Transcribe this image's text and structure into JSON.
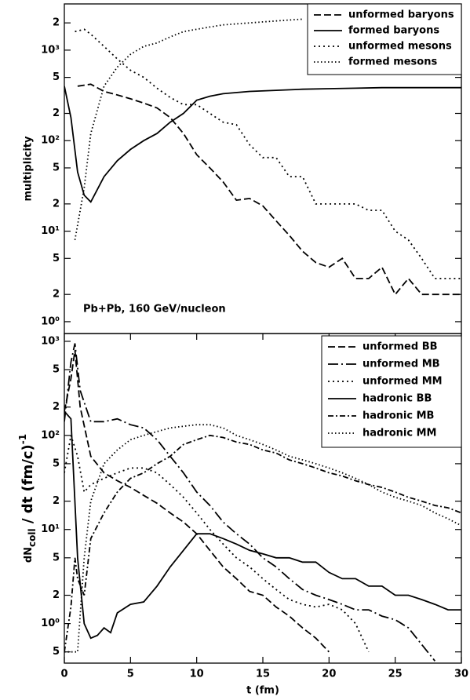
{
  "chart_data": [
    {
      "type": "line",
      "ylabel": "multiplicity",
      "annotation": "Pb+Pb, 160 GeV/nucleon",
      "xlim": [
        0,
        30
      ],
      "ylim": [
        0.74,
        3240
      ],
      "log_y": true,
      "legend": "upper right",
      "yticks": [
        {
          "value": 1,
          "label": "10⁰"
        },
        2,
        5,
        {
          "value": 10,
          "label": "10¹"
        },
        {
          "value": 20,
          "label": "2"
        },
        {
          "value": 50,
          "label": "5"
        },
        {
          "value": 100,
          "label": "10²"
        },
        {
          "value": 200,
          "label": "2"
        },
        {
          "value": 500,
          "label": "5"
        },
        {
          "value": 1000,
          "label": "10³"
        },
        {
          "value": 2000,
          "label": "2"
        }
      ],
      "series": [
        {
          "name": "unformed baryons",
          "color": "#000000",
          "dash": "dashed",
          "x": [
            1,
            2,
            3,
            4,
            5,
            6,
            7,
            8,
            9,
            10,
            11,
            12,
            13,
            14,
            15,
            16,
            17,
            18,
            19,
            20,
            21,
            22,
            23,
            24,
            25,
            26,
            27,
            28,
            29,
            30
          ],
          "values": [
            400,
            420,
            350,
            320,
            290,
            260,
            230,
            180,
            120,
            70,
            50,
            35,
            22,
            23,
            19,
            13,
            9,
            6,
            4.5,
            4,
            5,
            3,
            3,
            4,
            2,
            3,
            2,
            2,
            2,
            2
          ]
        },
        {
          "name": "formed baryons",
          "color": "#000000",
          "dash": "solid",
          "x": [
            0,
            0.5,
            1,
            1.5,
            2,
            3,
            4,
            5,
            6,
            7,
            8,
            9,
            10,
            11,
            12,
            14,
            16,
            18,
            20,
            22,
            24,
            26,
            28,
            30
          ],
          "values": [
            400,
            180,
            45,
            25,
            21,
            40,
            60,
            80,
            100,
            120,
            160,
            200,
            280,
            310,
            330,
            350,
            360,
            370,
            375,
            380,
            385,
            385,
            385,
            385
          ]
        },
        {
          "name": "unformed mesons",
          "color": "#000000",
          "dash": "dotted",
          "x": [
            0.8,
            1.5,
            2,
            3,
            4,
            5,
            6,
            7,
            8,
            9,
            10,
            11,
            12,
            13,
            14,
            15,
            16,
            17,
            18,
            19,
            20,
            21,
            22,
            23,
            24,
            25,
            26,
            27,
            28,
            29,
            30
          ],
          "values": [
            1600,
            1700,
            1500,
            1100,
            800,
            600,
            500,
            380,
            300,
            250,
            250,
            200,
            160,
            150,
            90,
            65,
            65,
            40,
            40,
            20,
            20,
            20,
            20,
            17,
            17,
            10,
            8,
            5,
            3,
            3,
            3
          ]
        },
        {
          "name": "formed mesons",
          "color": "#000000",
          "dash": "dotted2",
          "x": [
            0.8,
            1.5,
            2,
            3,
            4,
            5,
            6,
            7,
            8,
            9,
            10,
            11,
            12,
            13,
            14,
            15,
            16,
            17,
            18
          ],
          "values": [
            8,
            30,
            120,
            400,
            650,
            900,
            1100,
            1200,
            1400,
            1600,
            1700,
            1800,
            1900,
            1950,
            2000,
            2050,
            2100,
            2150,
            2200
          ]
        }
      ]
    },
    {
      "type": "line",
      "xlabel": "t (fm)",
      "ylabel": [
        "dN",
        "coll",
        " / dt (fm/c)",
        "-1"
      ],
      "xlim": [
        0,
        30
      ],
      "xticks": [
        0,
        5,
        10,
        15,
        20,
        25,
        30
      ],
      "ylim": [
        0.38,
        1210
      ],
      "log_y": true,
      "legend": "upper right",
      "yticks": [
        {
          "value": 0.5,
          "label": "5"
        },
        {
          "value": 1,
          "label": "10⁰"
        },
        2,
        5,
        {
          "value": 10,
          "label": "10¹"
        },
        {
          "value": 20,
          "label": "2"
        },
        {
          "value": 50,
          "label": "5"
        },
        {
          "value": 100,
          "label": "10²"
        },
        {
          "value": 200,
          "label": "2"
        },
        {
          "value": 500,
          "label": "5"
        },
        {
          "value": 1000,
          "label": "10³"
        }
      ],
      "series": [
        {
          "name": "unformed BB",
          "color": "#000000",
          "dash": "dashed",
          "x": [
            0,
            0.5,
            0.8,
            1.2,
            2,
            3,
            4,
            5,
            6,
            7,
            8,
            9,
            10,
            11,
            12,
            13,
            14,
            15,
            16,
            17,
            18,
            19,
            20
          ],
          "values": [
            180,
            400,
            800,
            200,
            60,
            40,
            33,
            28,
            23,
            19,
            15,
            12,
            9,
            6,
            4,
            3,
            2.2,
            2,
            1.5,
            1.2,
            0.9,
            0.7,
            0.5
          ]
        },
        {
          "name": "unformed MB",
          "color": "#000000",
          "dash": "longdashdot",
          "x": [
            0,
            0.5,
            0.8,
            1.2,
            2,
            3,
            4,
            5,
            6,
            7,
            8,
            9,
            10,
            11,
            12,
            13,
            14,
            15,
            16,
            17,
            18,
            19,
            20,
            21,
            22,
            23,
            24,
            25,
            26,
            27,
            28
          ],
          "values": [
            140,
            600,
            950,
            300,
            140,
            140,
            150,
            130,
            120,
            90,
            60,
            40,
            25,
            18,
            12,
            9,
            7,
            5,
            4,
            3,
            2.3,
            2,
            1.8,
            1.6,
            1.4,
            1.4,
            1.2,
            1.1,
            0.9,
            0.6,
            0.4
          ]
        },
        {
          "name": "unformed MM",
          "color": "#000000",
          "dash": "dotted",
          "x": [
            0,
            0.5,
            1,
            1.5,
            2,
            3,
            4,
            5,
            6,
            7,
            8,
            9,
            10,
            11,
            12,
            13,
            14,
            15,
            16,
            17,
            18,
            19,
            20,
            21,
            22,
            23
          ],
          "values": [
            40,
            100,
            60,
            25,
            30,
            35,
            40,
            45,
            45,
            40,
            30,
            22,
            15,
            10,
            7,
            5,
            4,
            3,
            2.3,
            1.8,
            1.6,
            1.5,
            1.6,
            1.4,
            1,
            0.5
          ]
        },
        {
          "name": "hadronic BB",
          "color": "#000000",
          "dash": "solid",
          "x": [
            0,
            0.5,
            1,
            1.5,
            2,
            2.5,
            3,
            3.5,
            4,
            5,
            6,
            7,
            8,
            9,
            10,
            11,
            12,
            13,
            14,
            15,
            16,
            17,
            18,
            19,
            20,
            21,
            22,
            23,
            24,
            25,
            26,
            27,
            28,
            29,
            30
          ],
          "values": [
            180,
            150,
            5,
            1,
            0.7,
            0.75,
            0.9,
            0.8,
            1.3,
            1.6,
            1.7,
            2.5,
            4,
            6,
            9,
            9,
            8,
            7,
            6,
            5.5,
            5,
            5,
            4.5,
            4.5,
            3.5,
            3,
            3,
            2.5,
            2.5,
            2,
            2,
            1.8,
            1.6,
            1.4,
            1.4
          ]
        },
        {
          "name": "hadronic MB",
          "color": "#000000",
          "dash": "dashdot",
          "x": [
            0,
            0.5,
            0.8,
            1,
            1.5,
            2,
            3,
            4,
            5,
            6,
            7,
            8,
            9,
            10,
            11,
            12,
            13,
            14,
            15,
            16,
            17,
            18,
            19,
            20,
            21,
            22,
            23,
            24,
            25,
            26,
            27,
            28,
            29,
            30
          ],
          "values": [
            0.5,
            1.5,
            5,
            3,
            2,
            8,
            15,
            25,
            35,
            40,
            50,
            60,
            80,
            90,
            100,
            95,
            85,
            80,
            70,
            65,
            55,
            50,
            45,
            40,
            37,
            33,
            30,
            28,
            25,
            22,
            20,
            18,
            17,
            15
          ]
        },
        {
          "name": "hadronic MM",
          "color": "#000000",
          "dash": "dotted2",
          "x": [
            0,
            1,
            1.5,
            2,
            3,
            4,
            5,
            6,
            7,
            8,
            9,
            10,
            11,
            12,
            13,
            14,
            15,
            16,
            17,
            18,
            19,
            20,
            21,
            22,
            23,
            24,
            25,
            26,
            27,
            28,
            29,
            30
          ],
          "values": [
            0.5,
            0.5,
            5,
            20,
            50,
            70,
            90,
            100,
            110,
            120,
            125,
            130,
            130,
            120,
            100,
            90,
            80,
            70,
            60,
            55,
            50,
            45,
            40,
            35,
            30,
            25,
            22,
            20,
            18,
            15,
            13,
            11
          ]
        }
      ]
    }
  ]
}
